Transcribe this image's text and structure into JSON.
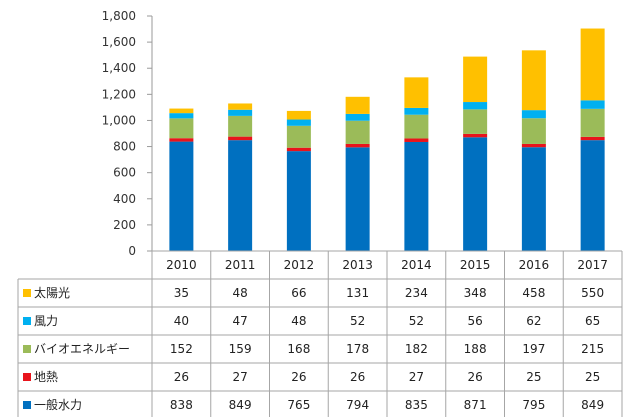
{
  "chart_data": {
    "type": "bar",
    "stacked": true,
    "categories": [
      "2010",
      "2011",
      "2012",
      "2013",
      "2014",
      "2015",
      "2016",
      "2017"
    ],
    "series": [
      {
        "name": "一般水力",
        "color": "#0070C0",
        "values": [
          838,
          849,
          765,
          794,
          835,
          871,
          795,
          849
        ]
      },
      {
        "name": "地熱",
        "color": "#E8141C",
        "values": [
          26,
          27,
          26,
          26,
          27,
          26,
          25,
          25
        ]
      },
      {
        "name": "バイオエネルギー",
        "color": "#9BBB59",
        "values": [
          152,
          159,
          168,
          178,
          182,
          188,
          197,
          215
        ]
      },
      {
        "name": "風力",
        "color": "#00B0F0",
        "values": [
          40,
          47,
          48,
          52,
          52,
          56,
          62,
          65
        ]
      },
      {
        "name": "太陽光",
        "color": "#FFC000",
        "values": [
          35,
          48,
          66,
          131,
          234,
          348,
          458,
          550
        ]
      }
    ],
    "ylim": [
      0,
      1800
    ],
    "yticks": [
      "0",
      "200",
      "400",
      "600",
      "800",
      "1,000",
      "1,200",
      "1,400",
      "1,600",
      "1,800"
    ],
    "grid": false,
    "legend": "data table",
    "table_row_order": [
      "太陽光",
      "風力",
      "バイオエネルギー",
      "地熱",
      "一般水力"
    ]
  }
}
